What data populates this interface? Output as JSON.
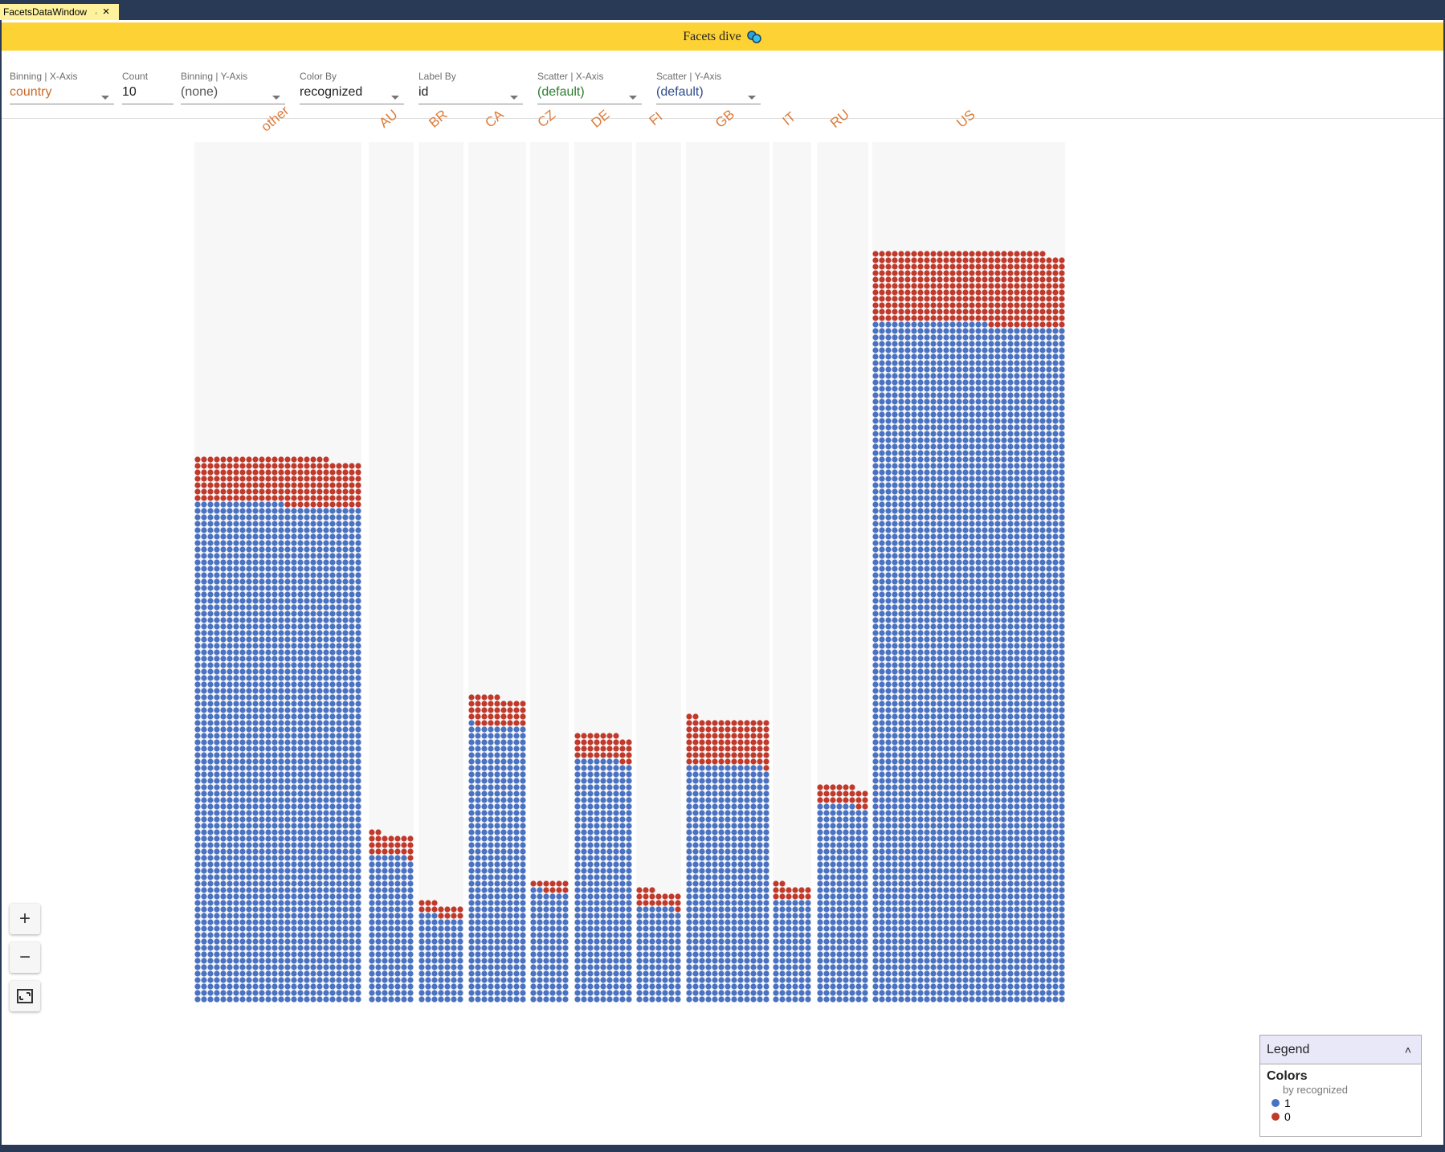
{
  "window": {
    "tab_title": "FacetsDataWindow",
    "pin_icon": "pin-icon",
    "close_icon": "close-icon"
  },
  "header": {
    "title": "Facets dive"
  },
  "controls": {
    "binning_x": {
      "label": "Binning | X-Axis",
      "value": "country",
      "color": "#c96a2c"
    },
    "count": {
      "label": "Count",
      "value": "10"
    },
    "binning_y": {
      "label": "Binning | Y-Axis",
      "value": "(none)",
      "color": "#555555"
    },
    "color_by": {
      "label": "Color By",
      "value": "recognized"
    },
    "label_by": {
      "label": "Label By",
      "value": "id"
    },
    "scatter_x": {
      "label": "Scatter | X-Axis",
      "value": "(default)",
      "color": "#2e7d32"
    },
    "scatter_y": {
      "label": "Scatter | Y-Axis",
      "value": "(default)",
      "color": "#2e4d8a"
    }
  },
  "zoom": {
    "in_label": "+",
    "out_label": "−",
    "fit_icon": "fit-to-screen-icon"
  },
  "legend": {
    "header": "Legend",
    "collapse_icon": "chevron-up-icon",
    "title": "Colors",
    "subtitle": "by recognized",
    "items": [
      {
        "label": "1",
        "color": "#4a72c2"
      },
      {
        "label": "0",
        "color": "#c0392b"
      }
    ]
  },
  "chart_data": {
    "type": "stacked-dot-histogram",
    "x_field": "country",
    "color_field": "recognized",
    "colors": {
      "1": "#4a72c2",
      "0": "#c0392b"
    },
    "categories": [
      "other",
      "AU",
      "BR",
      "CA",
      "CZ",
      "DE",
      "FI",
      "GB",
      "IT",
      "RU",
      "US"
    ],
    "series": [
      {
        "name": "1",
        "values": [
          2016,
          160,
          94,
          388,
          104,
          340,
          104,
          480,
          96,
          246,
          3168
        ]
      },
      {
        "name": "0",
        "values": [
          189,
          24,
          14,
          40,
          10,
          36,
          18,
          94,
          14,
          24,
          339
        ]
      }
    ]
  }
}
